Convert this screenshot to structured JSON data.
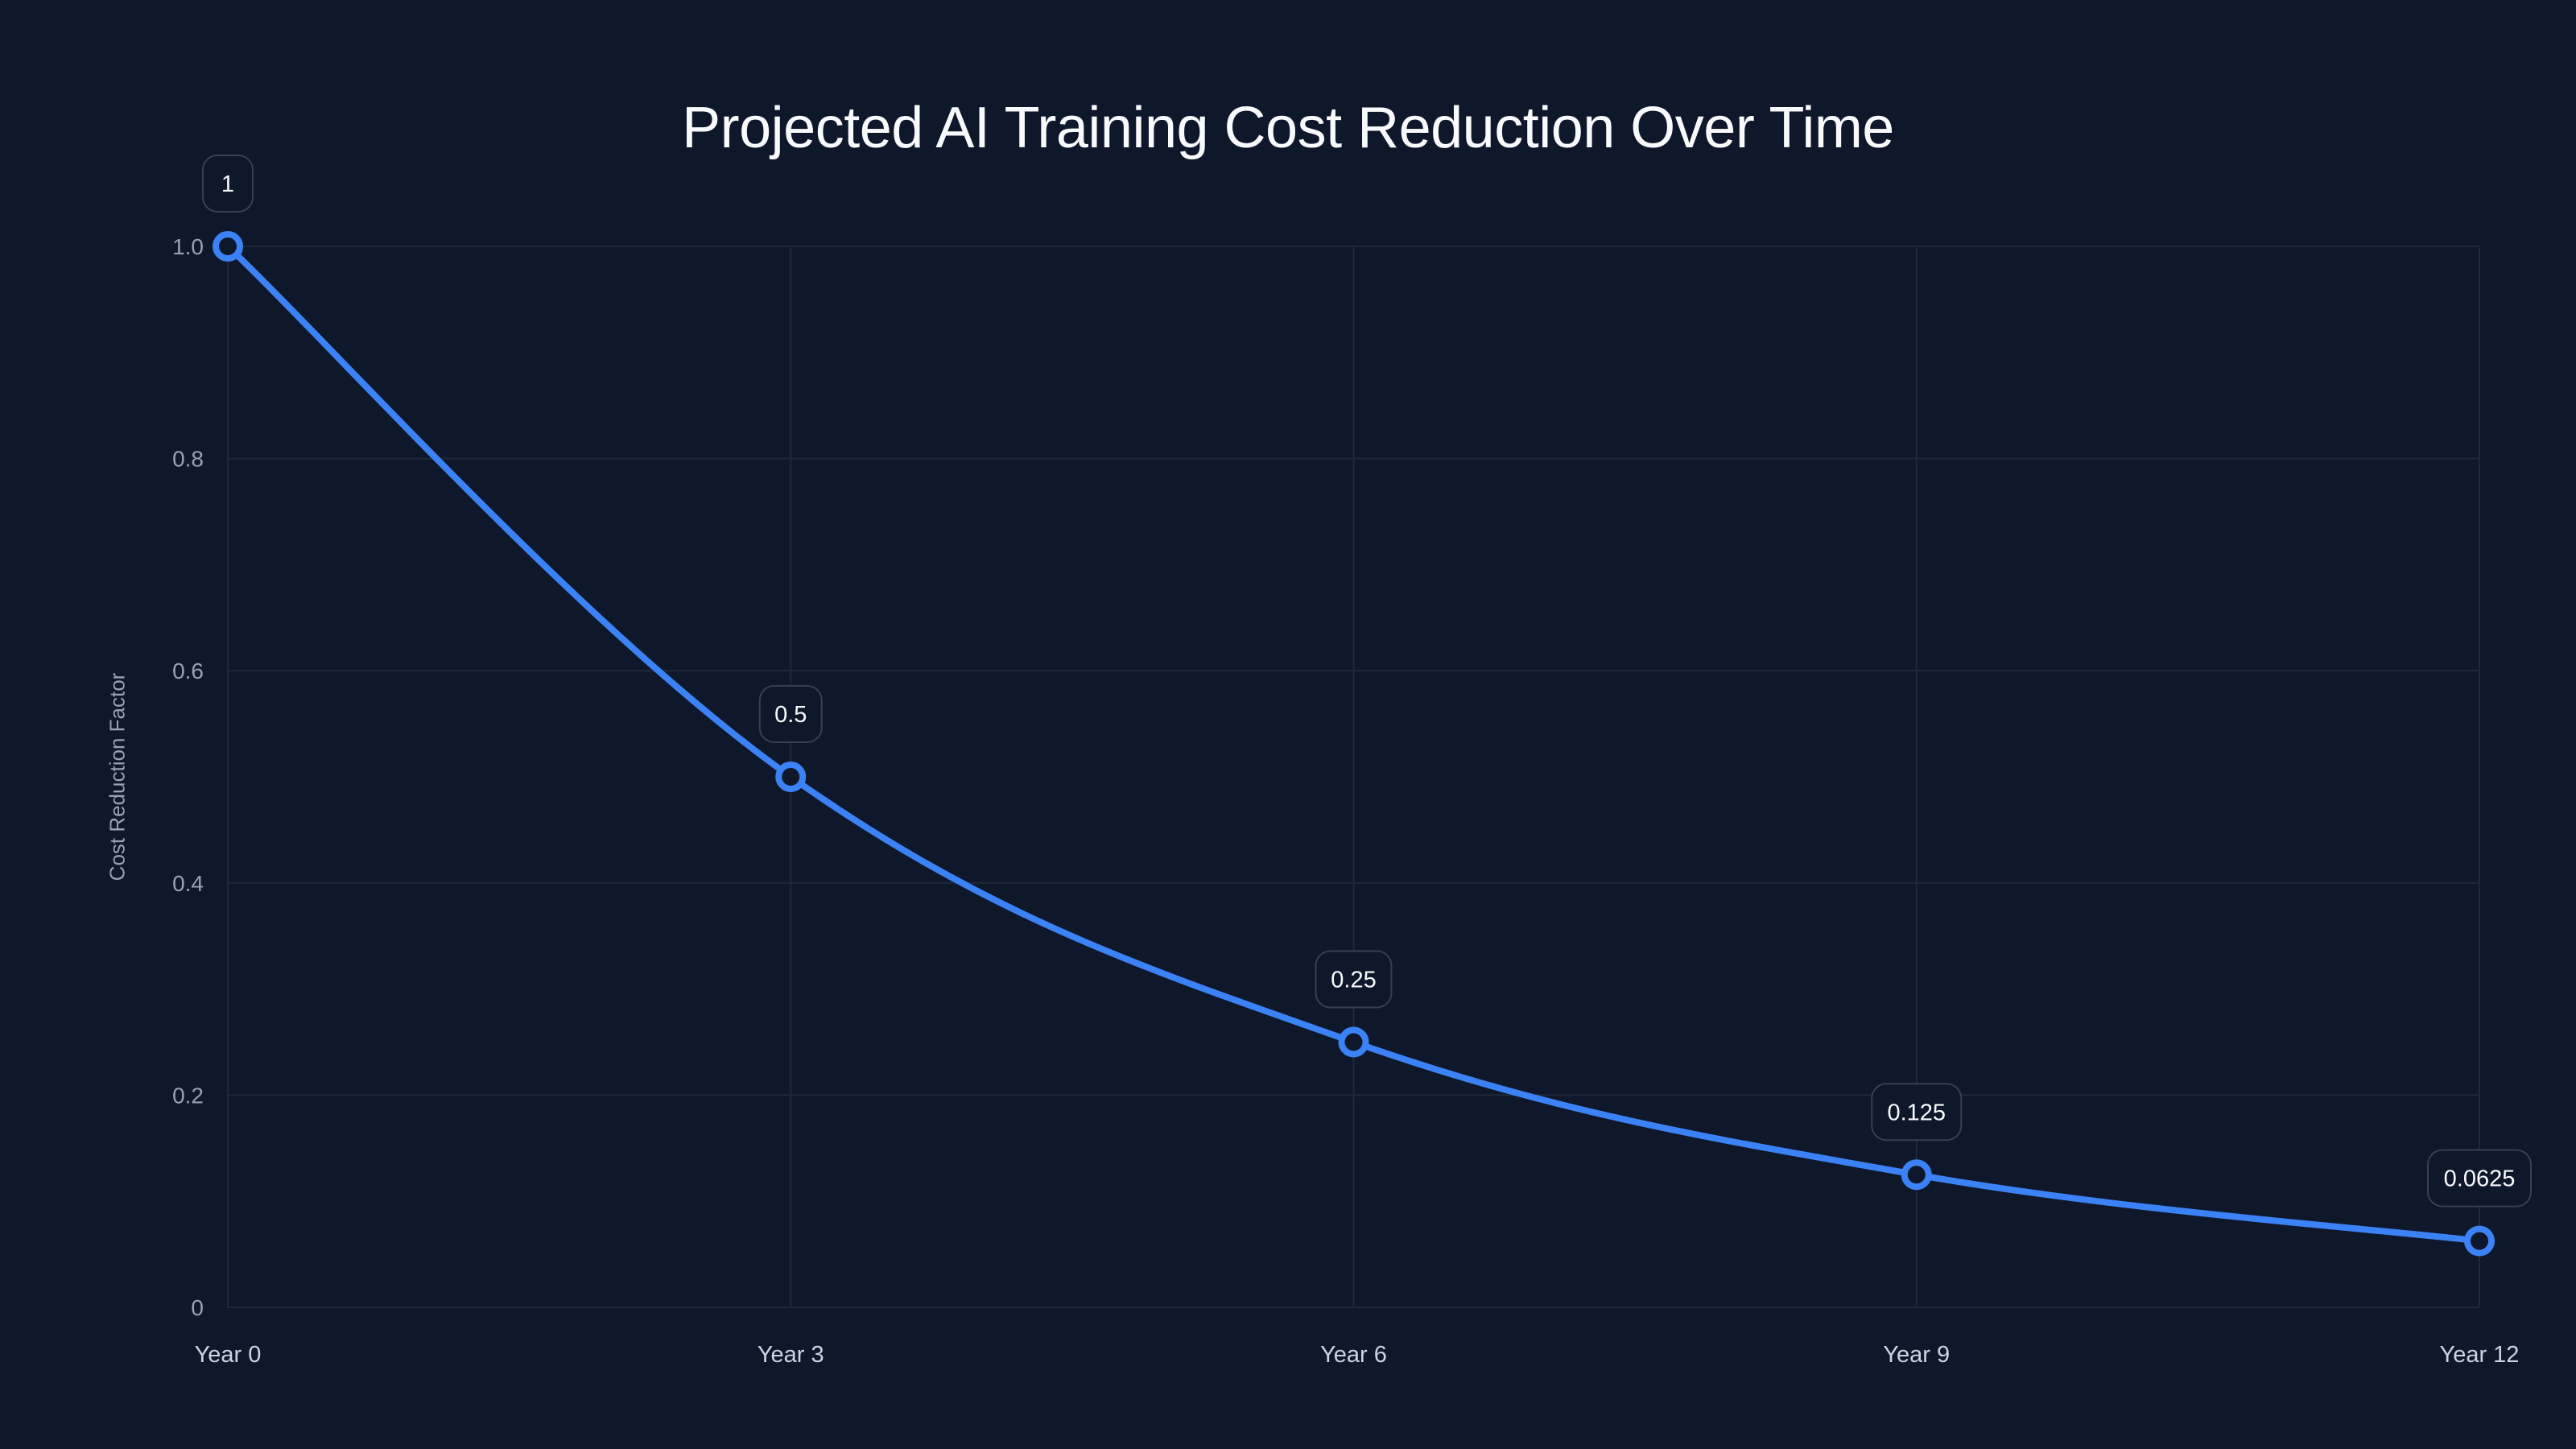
{
  "chart_data": {
    "type": "line",
    "title": "Projected AI Training Cost Reduction Over Time",
    "xlabel": "",
    "ylabel": "Cost Reduction Factor",
    "categories": [
      "Year 0",
      "Year 3",
      "Year 6",
      "Year 9",
      "Year 12"
    ],
    "x": [
      0,
      3,
      6,
      9,
      12
    ],
    "series": [
      {
        "name": "Cost Reduction Factor",
        "values": [
          1,
          0.5,
          0.25,
          0.125,
          0.0625
        ],
        "data_labels": [
          "1",
          "0.5",
          "0.25",
          "0.125",
          "0.0625"
        ],
        "color": "#3b82f6",
        "smooth": true,
        "markers": "hollow-circle"
      }
    ],
    "ylim": [
      0,
      1.0
    ],
    "y_ticks": [
      0,
      0.2,
      0.4,
      0.6,
      0.8,
      1.0
    ],
    "y_tick_labels": [
      "0",
      "0.2",
      "0.4",
      "0.6",
      "0.8",
      "1.0"
    ],
    "grid": true,
    "legend": "none"
  },
  "colors": {
    "background": "#0f172a",
    "grid": "#1e293b",
    "line": "#3b82f6",
    "marker_fill": "#0f172a",
    "label_border": "#334155",
    "title_text": "#f8fafc",
    "axis_text": "#94a3b8"
  }
}
